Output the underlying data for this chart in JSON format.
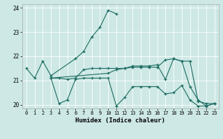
{
  "xlabel": "Humidex (Indice chaleur)",
  "bg_color": "#cde8e5",
  "line_color": "#1a6b60",
  "grid_color": "#b0d4d0",
  "xlim": [
    -0.5,
    23.5
  ],
  "ylim": [
    19.85,
    24.15
  ],
  "yticks": [
    20,
    21,
    22,
    23,
    24
  ],
  "xticks": [
    0,
    1,
    2,
    3,
    4,
    5,
    6,
    7,
    8,
    9,
    10,
    11,
    12,
    13,
    14,
    15,
    16,
    17,
    18,
    19,
    20,
    21,
    22,
    23
  ],
  "lines": [
    {
      "x": [
        0,
        1,
        2,
        3,
        6,
        7,
        8,
        9,
        10,
        11
      ],
      "y": [
        21.5,
        21.1,
        21.8,
        21.2,
        21.9,
        22.2,
        22.8,
        23.2,
        23.9,
        23.75
      ]
    },
    {
      "x": [
        3,
        4,
        5,
        6,
        7,
        8,
        9,
        10,
        11,
        12,
        13,
        14,
        15,
        16,
        17,
        18,
        19,
        20,
        21,
        22,
        23
      ],
      "y": [
        21.1,
        20.05,
        20.2,
        21.05,
        21.1,
        21.1,
        21.1,
        21.1,
        19.95,
        20.3,
        20.75,
        20.75,
        20.75,
        20.75,
        20.45,
        20.5,
        20.8,
        20.2,
        19.95,
        19.95,
        20.05
      ]
    },
    {
      "x": [
        3,
        4,
        5,
        6,
        7,
        8,
        9,
        10,
        11,
        12,
        13,
        14,
        15,
        16,
        17,
        18,
        19,
        20,
        21,
        22,
        23
      ],
      "y": [
        21.1,
        21.1,
        21.05,
        21.1,
        21.45,
        21.5,
        21.5,
        21.5,
        21.5,
        21.5,
        21.55,
        21.55,
        21.55,
        21.55,
        21.85,
        21.9,
        21.8,
        21.8,
        20.15,
        20.05,
        20.05
      ]
    },
    {
      "x": [
        3,
        10,
        11,
        12,
        13,
        14,
        15,
        16,
        17,
        18,
        19,
        20,
        21,
        22,
        23
      ],
      "y": [
        21.1,
        21.3,
        21.45,
        21.5,
        21.6,
        21.6,
        21.6,
        21.65,
        21.05,
        21.9,
        21.8,
        20.75,
        20.2,
        19.95,
        20.05
      ]
    }
  ]
}
